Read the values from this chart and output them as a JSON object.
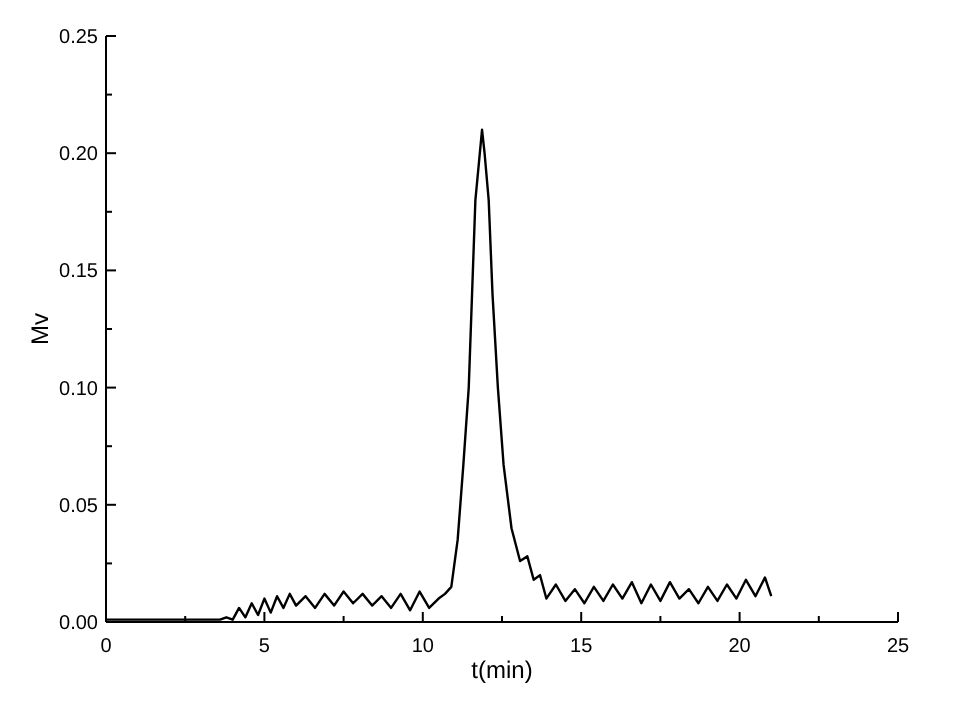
{
  "chart_data": {
    "type": "line",
    "xlabel": "t(min)",
    "ylabel": "Mv",
    "xlim": [
      0,
      25
    ],
    "ylim": [
      0,
      0.25
    ],
    "xticks": [
      0,
      {
        "value": 2.5,
        "label": null
      },
      5,
      {
        "value": 7.5,
        "label": null
      },
      10,
      {
        "value": 12.5,
        "label": null
      },
      15,
      {
        "value": 17.5,
        "label": null
      },
      20,
      {
        "value": 22.5,
        "label": null
      },
      25
    ],
    "yticks": [
      "0.00",
      {
        "value": 0.025,
        "label": null
      },
      {
        "value": 0.05,
        "label": "0.05"
      },
      {
        "value": 0.075,
        "label": null
      },
      {
        "value": 0.1,
        "label": "0.10"
      },
      {
        "value": 0.125,
        "label": null
      },
      {
        "value": 0.15,
        "label": "0.15"
      },
      {
        "value": 0.175,
        "label": null
      },
      {
        "value": 0.2,
        "label": "0.20"
      },
      {
        "value": 0.225,
        "label": null
      },
      {
        "value": 0.25,
        "label": "0.25"
      }
    ],
    "grid": false,
    "marker": "none",
    "line_style": "solid",
    "series": [
      {
        "color": "#000000",
        "x": [
          0,
          1,
          2,
          3,
          3.6,
          3.8,
          4.0,
          4.2,
          4.4,
          4.6,
          4.8,
          5.0,
          5.2,
          5.4,
          5.6,
          5.8,
          6.0,
          6.3,
          6.6,
          6.9,
          7.2,
          7.5,
          7.8,
          8.1,
          8.4,
          8.7,
          9.0,
          9.3,
          9.6,
          9.9,
          10.2,
          10.5,
          10.7,
          10.9,
          11.1,
          11.28,
          11.45,
          11.66,
          11.8,
          11.87,
          11.95,
          12.08,
          12.2,
          12.37,
          12.55,
          12.8,
          13.07,
          13.3,
          13.5,
          13.7,
          13.9,
          14.2,
          14.5,
          14.8,
          15.1,
          15.4,
          15.7,
          16.0,
          16.3,
          16.6,
          16.9,
          17.2,
          17.5,
          17.8,
          18.1,
          18.4,
          18.7,
          19.0,
          19.3,
          19.6,
          19.9,
          20.2,
          20.5,
          20.8,
          21.0
        ],
        "values": [
          0.001,
          0.001,
          0.001,
          0.001,
          0.001,
          0.002,
          0.001,
          0.006,
          0.002,
          0.008,
          0.003,
          0.01,
          0.004,
          0.011,
          0.006,
          0.012,
          0.007,
          0.011,
          0.006,
          0.012,
          0.007,
          0.013,
          0.008,
          0.012,
          0.007,
          0.011,
          0.006,
          0.012,
          0.005,
          0.013,
          0.006,
          0.01,
          0.012,
          0.015,
          0.035,
          0.067,
          0.1,
          0.18,
          0.2,
          0.21,
          0.2,
          0.18,
          0.14,
          0.1,
          0.067,
          0.04,
          0.026,
          0.028,
          0.018,
          0.02,
          0.01,
          0.016,
          0.009,
          0.014,
          0.008,
          0.015,
          0.009,
          0.016,
          0.01,
          0.017,
          0.008,
          0.016,
          0.009,
          0.017,
          0.01,
          0.014,
          0.008,
          0.015,
          0.009,
          0.016,
          0.01,
          0.018,
          0.011,
          0.019,
          0.011
        ]
      }
    ]
  }
}
